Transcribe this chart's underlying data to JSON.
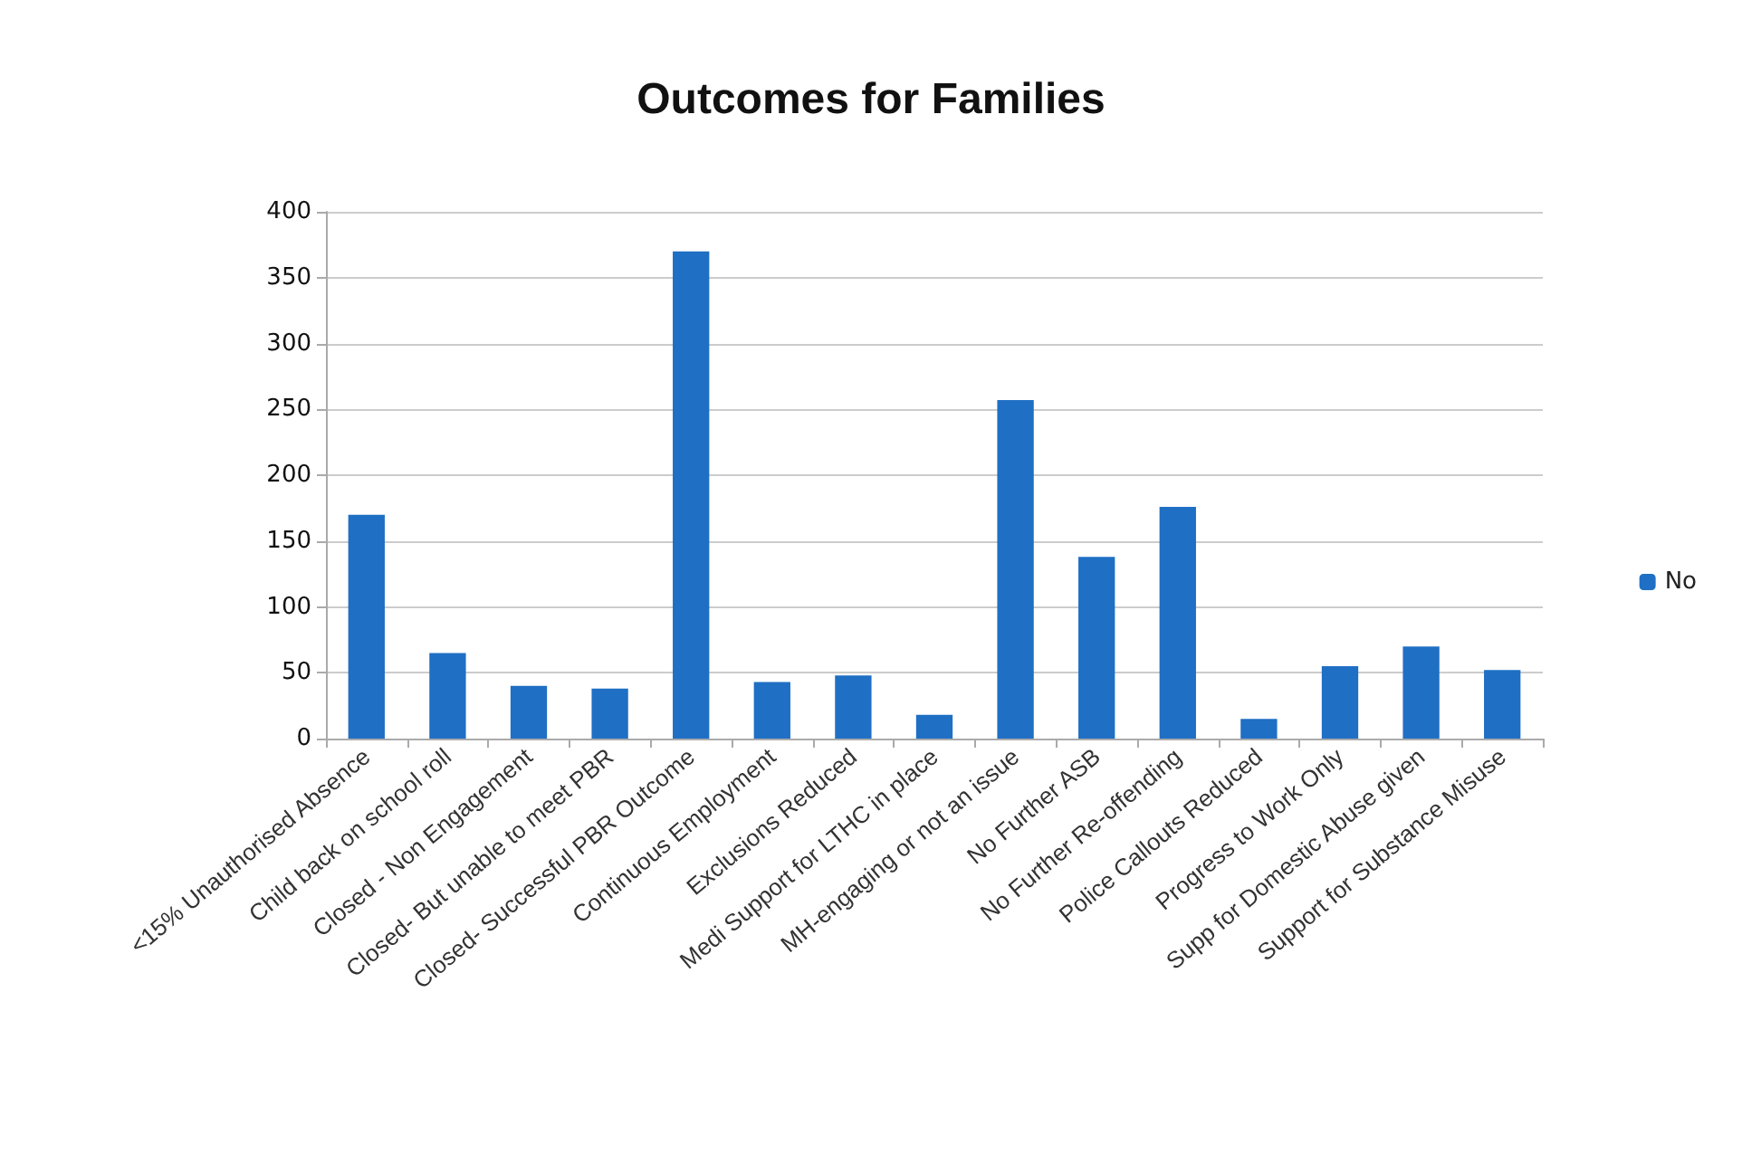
{
  "chart_data": {
    "type": "bar",
    "title": "Outcomes for Families",
    "categories": [
      "<15% Unauthorised Absence",
      "Child back on school roll",
      "Closed - Non Engagement",
      "Closed- But unable to meet PBR",
      "Closed- Successful PBR Outcome",
      "Continuous Employment",
      "Exclusions Reduced",
      "Medi Support for LTHC in place",
      "MH-engaging or not an issue",
      "No Further ASB",
      "No Further Re-offending",
      "Police Callouts Reduced",
      "Progress to Work Only",
      "Supp for Domestic Abuse given",
      "Support for Substance Misuse"
    ],
    "series": [
      {
        "name": "No",
        "color": "#1f6fc4",
        "values": [
          170,
          65,
          40,
          38,
          370,
          43,
          48,
          18,
          257,
          138,
          176,
          15,
          55,
          70,
          52
        ]
      }
    ],
    "ylim": [
      0,
      400
    ],
    "yticks": [
      0,
      50,
      100,
      150,
      200,
      250,
      300,
      350,
      400
    ],
    "grid": "y",
    "legend": "right"
  }
}
